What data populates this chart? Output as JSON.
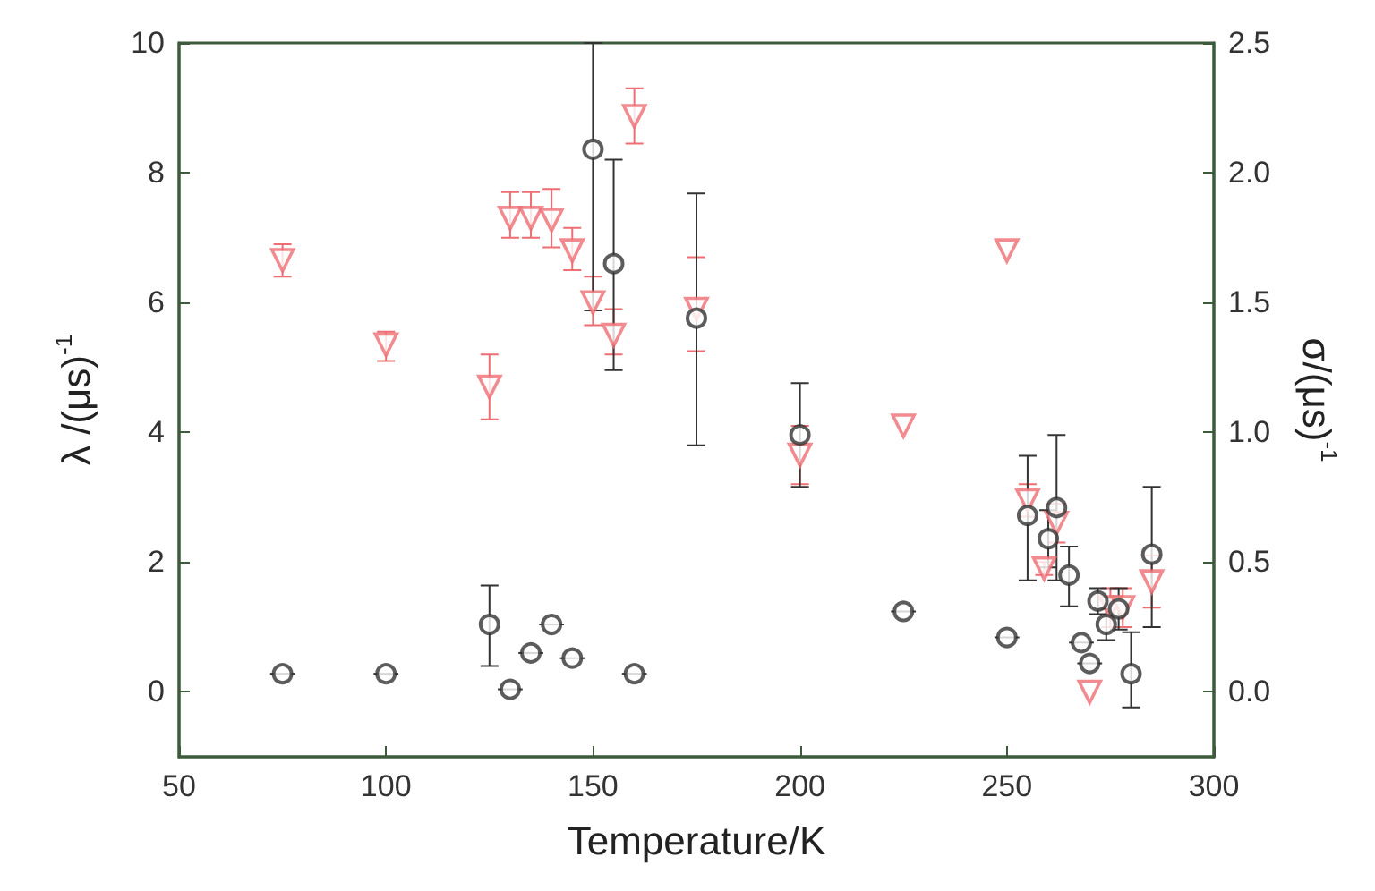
{
  "chart_data": {
    "type": "scatter",
    "xlabel": "Temperature/K",
    "ylabel": "λ /(μs)$^{-1}$",
    "y2label": "σ/(μs)$^{-1}$",
    "xlim": [
      50,
      300
    ],
    "xticks": [
      50,
      100,
      150,
      200,
      250,
      300
    ],
    "ylim": [
      -1,
      10
    ],
    "yticks": [
      0,
      2,
      4,
      6,
      8,
      10
    ],
    "y2lim": [
      -0.25,
      2.5
    ],
    "y2ticks": [
      {
        "value": 0,
        "label": "0.0"
      },
      {
        "value": 0.5,
        "label": "0.5"
      },
      {
        "value": 1,
        "label": "1.0"
      },
      {
        "value": 1.5,
        "label": "1.5"
      },
      {
        "value": 2,
        "label": "2.0"
      },
      {
        "value": 2.5,
        "label": "2.5"
      }
    ],
    "grid": false,
    "series": [
      {
        "color": "#ee6e73",
        "marker": "triangle",
        "x": [
          75,
          100,
          125,
          130,
          135,
          140,
          145,
          150,
          155,
          160,
          175,
          200,
          225,
          250,
          255,
          259,
          262,
          270,
          275,
          278,
          285
        ],
        "values": [
          6.65,
          5.35,
          4.7,
          7.3,
          7.3,
          7.27,
          6.8,
          6.0,
          5.5,
          8.87,
          5.9,
          3.65,
          4.1,
          6.8,
          2.95,
          1.9,
          2.6,
          0.0,
          1.3,
          1.3,
          1.7
        ],
        "errors": [
          [
            6.4,
            6.9
          ],
          [
            5.1,
            5.55
          ],
          [
            4.2,
            5.2
          ],
          [
            7.0,
            7.7
          ],
          [
            7.0,
            7.7
          ],
          [
            6.85,
            7.75
          ],
          [
            6.5,
            7.15
          ],
          [
            5.65,
            6.4
          ],
          [
            5.2,
            5.9
          ],
          [
            8.45,
            9.3
          ],
          [
            5.25,
            6.7
          ],
          [
            3.2,
            4.1
          ],
          null,
          null,
          [
            2.7,
            3.2
          ],
          [
            1.8,
            2.0
          ],
          [
            2.3,
            2.9
          ],
          null,
          [
            1.0,
            1.6
          ],
          [
            1.0,
            1.6
          ],
          [
            1.3,
            2.1
          ]
        ]
      },
      {
        "color": "#333333",
        "marker": "circle",
        "axis": "y2",
        "x": [
          75,
          100,
          125,
          130,
          135,
          140,
          145,
          150,
          155,
          160,
          175,
          200,
          225,
          250,
          255,
          260,
          262,
          265,
          268,
          270,
          272,
          274,
          277,
          280,
          285
        ],
        "values": [
          0.07,
          0.07,
          0.26,
          0.01,
          0.15,
          0.26,
          0.13,
          2.09,
          1.65,
          0.07,
          1.44,
          0.99,
          0.31,
          0.21,
          0.68,
          0.59,
          0.71,
          0.45,
          0.19,
          0.11,
          0.35,
          0.26,
          0.32,
          0.07,
          0.53
        ],
        "errors": [
          null,
          null,
          [
            0.1,
            0.41
          ],
          null,
          null,
          null,
          null,
          [
            1.47,
            2.5
          ],
          [
            1.24,
            2.05
          ],
          null,
          [
            0.95,
            1.92
          ],
          [
            0.79,
            1.19
          ],
          null,
          null,
          [
            0.43,
            0.91
          ],
          [
            0.48,
            0.7
          ],
          [
            0.43,
            0.99
          ],
          [
            0.33,
            0.56
          ],
          null,
          null,
          [
            0.3,
            0.4
          ],
          [
            0.2,
            0.32
          ],
          [
            0.24,
            0.4
          ],
          [
            -0.06,
            0.23
          ],
          [
            0.25,
            0.79
          ]
        ],
        "xerrors": [
          3,
          3,
          null,
          3,
          3,
          3,
          3,
          null,
          null,
          3,
          null,
          null,
          3,
          3,
          null,
          null,
          null,
          null,
          3,
          3,
          null,
          null,
          null,
          null,
          null
        ]
      }
    ]
  }
}
